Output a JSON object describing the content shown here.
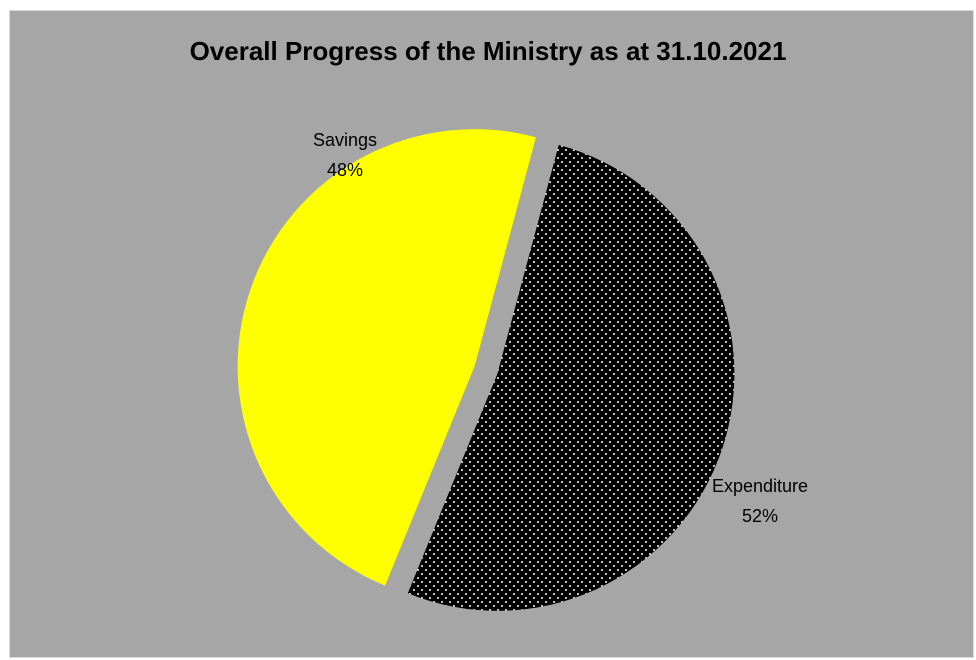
{
  "chart_data": {
    "type": "pie",
    "title": "Overall Progress of the Ministry as at 31.10.2021",
    "slices": [
      {
        "name": "Expenditure",
        "value": 52,
        "label": "52%",
        "color": "#000000",
        "pattern": "white-dots"
      },
      {
        "name": "Savings",
        "value": 48,
        "label": "48%",
        "color": "#ffff00",
        "pattern": "none"
      }
    ],
    "exploded": true,
    "background_color": "#a6a6a6",
    "legend": "none"
  }
}
